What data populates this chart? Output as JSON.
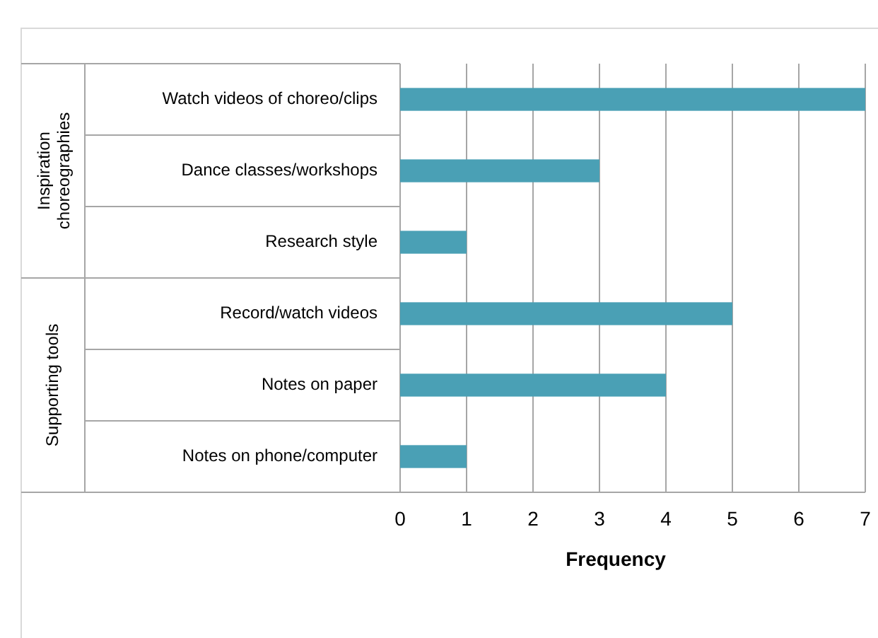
{
  "chart_data": {
    "type": "bar",
    "orientation": "horizontal",
    "categories": [
      "Watch videos of choreo/clips",
      "Dance classes/workshops",
      "Research style",
      "Record/watch videos",
      "Notes on paper",
      "Notes on phone/computer"
    ],
    "values": [
      7,
      3,
      1,
      5,
      4,
      1
    ],
    "color": "#4aa0b5",
    "xlim": [
      0,
      7
    ],
    "xticks": [
      0,
      1,
      2,
      3,
      4,
      5,
      6,
      7
    ],
    "grid": "x",
    "xlabel": "Frequency",
    "annotations": [
      "Inspiration choreographies",
      "Supporting tools"
    ]
  }
}
